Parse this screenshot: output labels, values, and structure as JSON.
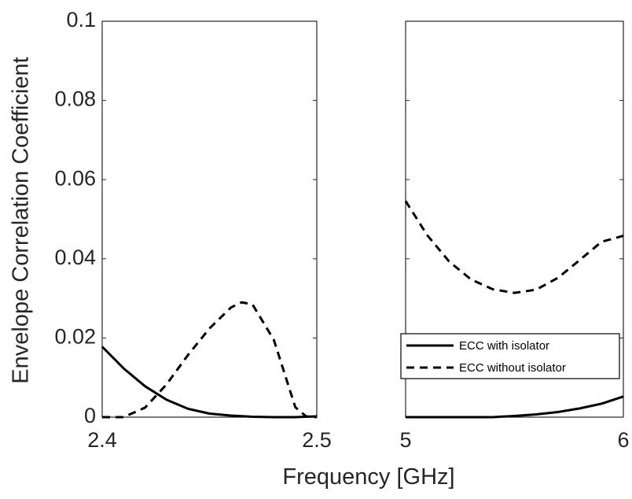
{
  "chart_data": {
    "type": "line",
    "xlabel": "Frequency [GHz]",
    "ylabel": "Envelope Correlation Coefficient",
    "ylim": [
      0,
      0.1
    ],
    "yticks": [
      "0",
      "0.02",
      "0.04",
      "0.06",
      "0.08",
      "0.1"
    ],
    "grid": false,
    "legend_position": "lower-right of right panel",
    "panels": [
      {
        "xlim": [
          2.4,
          2.5
        ],
        "xticks": [
          "2.4",
          "2.5"
        ],
        "series": [
          {
            "name": "ECC with isolator",
            "style": "solid",
            "x": [
              2.4,
              2.41,
              2.42,
              2.43,
              2.44,
              2.45,
              2.46,
              2.47,
              2.48,
              2.49,
              2.5
            ],
            "y": [
              0.0178,
              0.0123,
              0.0078,
              0.0044,
              0.0021,
              0.0009,
              0.0004,
              0.0001,
              0.0,
              0.0,
              0.0002
            ]
          },
          {
            "name": "ECC without isolator",
            "style": "dashed",
            "x": [
              2.4,
              2.41,
              2.42,
              2.43,
              2.44,
              2.45,
              2.46,
              2.465,
              2.47,
              2.48,
              2.49,
              2.495,
              2.5
            ],
            "y": [
              0.0,
              0.0,
              0.0024,
              0.0083,
              0.0157,
              0.0224,
              0.0277,
              0.029,
              0.0285,
              0.0195,
              0.0025,
              0.0002,
              0.0
            ]
          }
        ]
      },
      {
        "xlim": [
          5,
          6
        ],
        "xticks": [
          "5",
          "6"
        ],
        "series": [
          {
            "name": "ECC with isolator",
            "style": "solid",
            "x": [
              5.0,
              5.1,
              5.2,
              5.3,
              5.4,
              5.5,
              5.6,
              5.7,
              5.8,
              5.9,
              6.0
            ],
            "y": [
              0.0,
              0.0,
              0.0,
              0.0,
              0.0,
              0.0003,
              0.0007,
              0.0013,
              0.0022,
              0.0034,
              0.0052
            ]
          },
          {
            "name": "ECC without isolator",
            "style": "dashed",
            "x": [
              5.0,
              5.1,
              5.2,
              5.3,
              5.4,
              5.5,
              5.6,
              5.7,
              5.8,
              5.9,
              6.0
            ],
            "y": [
              0.0546,
              0.0459,
              0.0393,
              0.0348,
              0.0323,
              0.0314,
              0.0322,
              0.0352,
              0.0397,
              0.0443,
              0.0458
            ]
          }
        ]
      }
    ],
    "legend": [
      "ECC with isolator",
      "ECC without isolator"
    ]
  }
}
